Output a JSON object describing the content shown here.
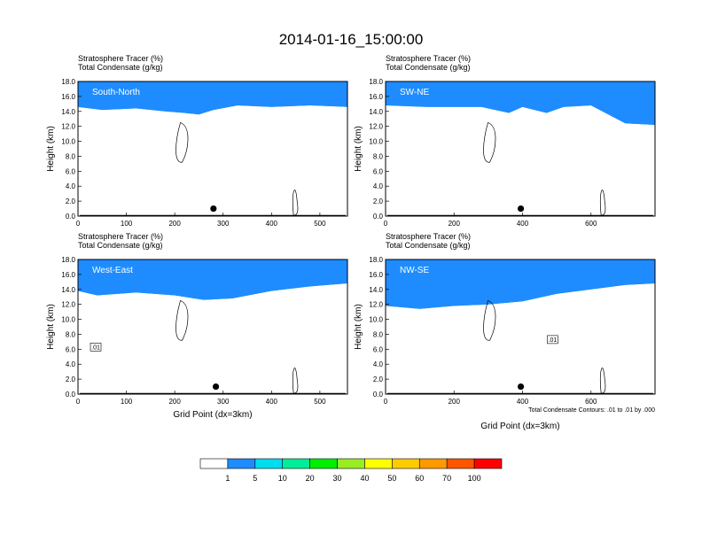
{
  "figure": {
    "title": "2014-01-16_15:00:00",
    "footnote": "Total Condensate Contours: .01 to .01 by .000"
  },
  "colorbar": {
    "colors": [
      "#ffffff",
      "#1e8cff",
      "#00ddee",
      "#00ee99",
      "#00ee00",
      "#99ee22",
      "#ffff00",
      "#ffcc00",
      "#ff9900",
      "#ff5500",
      "#ff0000"
    ],
    "labels": [
      "1",
      "5",
      "10",
      "20",
      "30",
      "40",
      "50",
      "60",
      "70",
      "100"
    ]
  },
  "chart_data": [
    {
      "type": "heatmap",
      "panel": "South-North",
      "title_lines": [
        "Stratosphere Tracer   (%)",
        "Total Condensate   (g/kg)"
      ],
      "ylabel": "Height (km)",
      "xlabel": "",
      "xlim": [
        0,
        557
      ],
      "ylim": [
        0,
        18
      ],
      "xticks": [
        "0",
        "100",
        "200",
        "300",
        "400",
        "500"
      ],
      "yticks": [
        "0.0",
        "2.0",
        "4.0",
        "6.0",
        "8.0",
        "10.0",
        "12.0",
        "14.0",
        "16.0",
        "18.0"
      ],
      "marker_x": 280,
      "contour_label": null,
      "tracer_base_km": [
        [
          0,
          14.6
        ],
        [
          50,
          14.2
        ],
        [
          120,
          14.4
        ],
        [
          180,
          14.0
        ],
        [
          220,
          13.8
        ],
        [
          250,
          13.6
        ],
        [
          280,
          14.2
        ],
        [
          330,
          14.8
        ],
        [
          400,
          14.6
        ],
        [
          480,
          14.8
        ],
        [
          557,
          14.6
        ]
      ]
    },
    {
      "type": "heatmap",
      "panel": "SW-NE",
      "title_lines": [
        "Stratosphere Tracer   (%)",
        "Total Condensate   (g/kg)"
      ],
      "ylabel": "Height (km)",
      "xlabel": "",
      "xlim": [
        0,
        787
      ],
      "ylim": [
        0,
        18
      ],
      "xticks": [
        "0",
        "200",
        "400",
        "600"
      ],
      "yticks": [
        "0.0",
        "2.0",
        "4.0",
        "6.0",
        "8.0",
        "10.0",
        "12.0",
        "14.0",
        "16.0",
        "18.0"
      ],
      "marker_x": 395,
      "contour_label": null,
      "tracer_base_km": [
        [
          0,
          14.8
        ],
        [
          120,
          14.6
        ],
        [
          280,
          14.6
        ],
        [
          360,
          13.8
        ],
        [
          400,
          14.6
        ],
        [
          470,
          13.8
        ],
        [
          520,
          14.6
        ],
        [
          600,
          14.8
        ],
        [
          700,
          12.4
        ],
        [
          787,
          12.2
        ]
      ]
    },
    {
      "type": "heatmap",
      "panel": "West-East",
      "title_lines": [
        "Stratosphere Tracer   (%)",
        "Total Condensate   (g/kg)"
      ],
      "ylabel": "Height (km)",
      "xlabel": "Grid Point (dx=3km)",
      "xlim": [
        0,
        557
      ],
      "ylim": [
        0,
        18
      ],
      "xticks": [
        "0",
        "100",
        "200",
        "300",
        "400",
        "500"
      ],
      "yticks": [
        "0.0",
        "2.0",
        "4.0",
        "6.0",
        "8.0",
        "10.0",
        "12.0",
        "14.0",
        "16.0",
        "18.0"
      ],
      "marker_x": 285,
      "contour_label": ".01",
      "tracer_base_km": [
        [
          0,
          13.8
        ],
        [
          40,
          13.2
        ],
        [
          120,
          13.6
        ],
        [
          200,
          13.2
        ],
        [
          260,
          12.6
        ],
        [
          320,
          12.8
        ],
        [
          400,
          13.8
        ],
        [
          480,
          14.4
        ],
        [
          557,
          14.8
        ]
      ]
    },
    {
      "type": "heatmap",
      "panel": "NW-SE",
      "title_lines": [
        "Stratosphere Tracer   (%)",
        "Total Condensate   (g/kg)"
      ],
      "ylabel": "Height (km)",
      "xlabel": "Grid Point (dx=3km)",
      "xlim": [
        0,
        787
      ],
      "ylim": [
        0,
        18
      ],
      "xticks": [
        "0",
        "200",
        "400",
        "600"
      ],
      "yticks": [
        "0.0",
        "2.0",
        "4.0",
        "6.0",
        "8.0",
        "10.0",
        "12.0",
        "14.0",
        "16.0",
        "18.0"
      ],
      "marker_x": 395,
      "contour_label": ".01",
      "tracer_base_km": [
        [
          0,
          11.8
        ],
        [
          100,
          11.4
        ],
        [
          200,
          11.8
        ],
        [
          300,
          12.0
        ],
        [
          400,
          12.4
        ],
        [
          500,
          13.4
        ],
        [
          600,
          14.0
        ],
        [
          700,
          14.6
        ],
        [
          787,
          14.8
        ]
      ]
    }
  ]
}
